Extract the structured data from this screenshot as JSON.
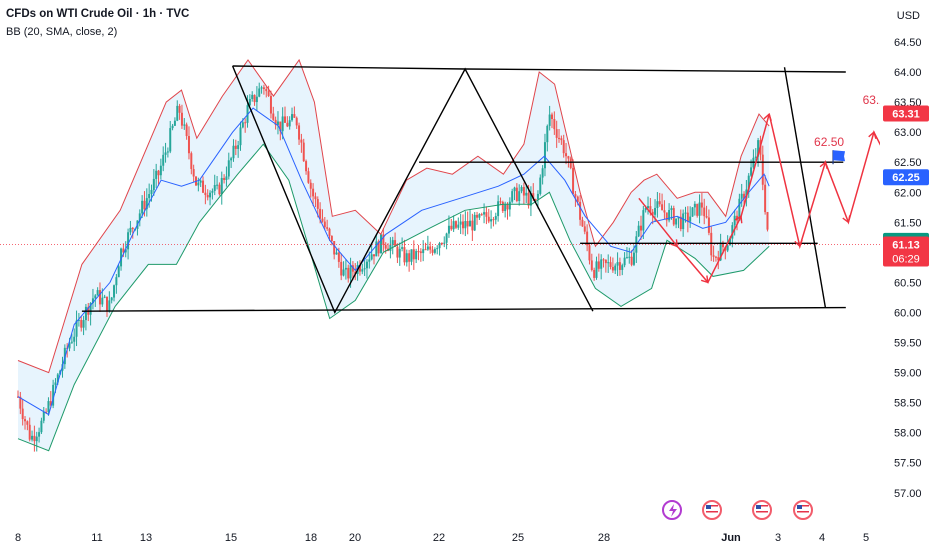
{
  "header": {
    "title": "CFDs on WTI Crude Oil · 1h · TVC",
    "indicator": "BB (20, SMA, close, 2)",
    "currency": "USD"
  },
  "colors": {
    "candle_up": "#26a69a",
    "candle_down": "#ef5350",
    "bb_upper": "#e0454b",
    "bb_lower": "#1e9a6a",
    "bb_basis": "#2962ff",
    "bb_fill": "#e3f2fd",
    "pattern_lines": "#000000",
    "projection": "#ef3340",
    "flag": "#2962ff"
  },
  "chart_data": {
    "type": "candlestick",
    "x_ticks": [
      "8",
      "11",
      "13",
      "15",
      "18",
      "20",
      "22",
      "25",
      "28",
      "Jun",
      "3",
      "4",
      "5"
    ],
    "y_ticks": [
      "64.50",
      "64.00",
      "63.50",
      "63.00",
      "62.50",
      "62.00",
      "61.50",
      "61.00",
      "60.50",
      "60.00",
      "59.50",
      "59.00",
      "58.50",
      "58.00",
      "57.50",
      "57.00"
    ],
    "ylim": [
      56.9,
      64.7
    ],
    "price_labels": [
      {
        "value": 63.31,
        "text": "63.31",
        "color": "#f23645"
      },
      {
        "value": 62.25,
        "text": "62.25",
        "color": "#2962ff"
      },
      {
        "value": 61.19,
        "text": "61.19",
        "color": "#089981"
      },
      {
        "value": 61.13,
        "text": "61.13",
        "color": "#f23645",
        "sub": "06:29"
      }
    ],
    "price_path": [
      [
        0,
        58.6
      ],
      [
        0.5,
        57.9
      ],
      [
        1,
        58.2
      ],
      [
        2,
        59.5
      ],
      [
        3,
        60.3
      ],
      [
        3.6,
        60.1
      ],
      [
        4,
        61.0
      ],
      [
        5.5,
        62.3
      ],
      [
        6.3,
        63.4
      ],
      [
        7,
        62.1
      ],
      [
        7.8,
        62.0
      ],
      [
        8.4,
        62.6
      ],
      [
        9,
        63.4
      ],
      [
        9.6,
        63.8
      ],
      [
        10.2,
        63.1
      ],
      [
        10.9,
        63.2
      ],
      [
        11.5,
        62.0
      ],
      [
        12.2,
        61.2
      ],
      [
        12.8,
        60.6
      ],
      [
        13.4,
        60.8
      ],
      [
        14.3,
        61.2
      ],
      [
        15.2,
        60.9
      ],
      [
        16,
        61.0
      ],
      [
        17,
        61.4
      ],
      [
        18,
        61.5
      ],
      [
        19,
        61.8
      ],
      [
        19.6,
        62.0
      ],
      [
        20.3,
        61.8
      ],
      [
        20.8,
        63.3
      ],
      [
        21.4,
        62.7
      ],
      [
        22,
        61.6
      ],
      [
        22.5,
        60.7
      ],
      [
        23.2,
        60.8
      ],
      [
        24,
        60.9
      ],
      [
        24.6,
        61.8
      ],
      [
        25.2,
        61.7
      ],
      [
        26,
        61.5
      ],
      [
        26.8,
        61.8
      ],
      [
        27.2,
        60.9
      ],
      [
        27.8,
        61.2
      ],
      [
        28.5,
        62.1
      ],
      [
        29,
        62.8
      ],
      [
        29.4,
        61.1
      ]
    ],
    "bb_upper": [
      [
        0,
        59.2
      ],
      [
        1.2,
        59.0
      ],
      [
        2.5,
        60.8
      ],
      [
        4,
        61.7
      ],
      [
        5.8,
        63.5
      ],
      [
        6.4,
        63.7
      ],
      [
        7,
        62.9
      ],
      [
        8,
        63.6
      ],
      [
        9,
        64.2
      ],
      [
        10,
        63.6
      ],
      [
        11,
        64.2
      ],
      [
        11.6,
        63.5
      ],
      [
        12.3,
        61.6
      ],
      [
        13.2,
        61.7
      ],
      [
        14.2,
        61.3
      ],
      [
        15.2,
        62.2
      ],
      [
        16,
        62.4
      ],
      [
        17,
        62.3
      ],
      [
        18,
        62.6
      ],
      [
        19,
        62.3
      ],
      [
        19.8,
        62.8
      ],
      [
        20.4,
        64.0
      ],
      [
        21,
        63.8
      ],
      [
        22,
        62.0
      ],
      [
        22.6,
        61.1
      ],
      [
        23.3,
        61.5
      ],
      [
        24,
        62.0
      ],
      [
        24.5,
        62.2
      ],
      [
        25,
        62.3
      ],
      [
        25.8,
        61.9
      ],
      [
        26.5,
        62.0
      ],
      [
        27,
        62.0
      ],
      [
        27.7,
        61.6
      ],
      [
        28.3,
        62.6
      ],
      [
        29,
        63.3
      ],
      [
        29.4,
        63.1
      ]
    ],
    "bb_basis": [
      [
        0,
        58.6
      ],
      [
        1.2,
        58.3
      ],
      [
        2.2,
        59.8
      ],
      [
        3.6,
        60.5
      ],
      [
        4.6,
        61.4
      ],
      [
        5.6,
        62.2
      ],
      [
        6.4,
        62.1
      ],
      [
        7.1,
        62.2
      ],
      [
        8.4,
        63.0
      ],
      [
        9.2,
        63.4
      ],
      [
        10.2,
        63.1
      ],
      [
        11.1,
        62.2
      ],
      [
        12.2,
        61.2
      ],
      [
        13.2,
        60.7
      ],
      [
        14.4,
        61.3
      ],
      [
        15.8,
        61.7
      ],
      [
        17.3,
        61.9
      ],
      [
        18.8,
        62.1
      ],
      [
        19.8,
        62.3
      ],
      [
        20.6,
        62.6
      ],
      [
        21.4,
        62.2
      ],
      [
        22.2,
        61.6
      ],
      [
        23.2,
        61.1
      ],
      [
        24,
        61.0
      ],
      [
        24.8,
        61.5
      ],
      [
        25.8,
        61.6
      ],
      [
        26.8,
        61.4
      ],
      [
        27.7,
        61.5
      ],
      [
        28.6,
        62.0
      ],
      [
        29.2,
        62.3
      ],
      [
        29.4,
        62.1
      ]
    ],
    "bb_lower": [
      [
        0,
        57.9
      ],
      [
        1.2,
        57.7
      ],
      [
        2.2,
        58.8
      ],
      [
        3.8,
        60.1
      ],
      [
        5.1,
        60.8
      ],
      [
        6.2,
        60.8
      ],
      [
        7.1,
        61.5
      ],
      [
        8.6,
        62.3
      ],
      [
        9.6,
        62.8
      ],
      [
        10.6,
        62.2
      ],
      [
        11.3,
        61.2
      ],
      [
        12.2,
        59.9
      ],
      [
        13.2,
        60.2
      ],
      [
        14.3,
        61.0
      ],
      [
        16.1,
        61.4
      ],
      [
        17.5,
        61.7
      ],
      [
        19,
        61.8
      ],
      [
        20.1,
        61.8
      ],
      [
        20.8,
        62.0
      ],
      [
        21.6,
        61.2
      ],
      [
        22.6,
        60.4
      ],
      [
        23.6,
        60.1
      ],
      [
        24.8,
        60.4
      ],
      [
        25.4,
        61.2
      ],
      [
        26.5,
        60.9
      ],
      [
        27.2,
        60.6
      ],
      [
        28.4,
        60.7
      ],
      [
        29.4,
        61.1
      ]
    ],
    "pattern_lines": [
      [
        [
          8.4,
          64.1
        ],
        [
          12.4,
          60.0
        ],
        [
          17.5,
          64.05
        ],
        [
          22.5,
          60.02
        ]
      ],
      [
        [
          8.4,
          64.1
        ],
        [
          17.5,
          64.05
        ],
        [
          32.4,
          64.0
        ]
      ],
      [
        [
          2.5,
          60.02
        ],
        [
          32.4,
          60.08
        ]
      ],
      [
        [
          15.7,
          62.5
        ],
        [
          32.3,
          62.5
        ]
      ],
      [
        [
          22,
          61.15
        ],
        [
          31.3,
          61.15
        ]
      ],
      [
        [
          30.0,
          64.08
        ],
        [
          31.6,
          60.08
        ]
      ]
    ],
    "projection_path": [
      [
        24.3,
        61.9
      ],
      [
        25.8,
        61.1
      ],
      [
        27,
        60.5
      ],
      [
        28.3,
        61.6
      ],
      [
        29.4,
        63.3
      ],
      [
        30.6,
        61.1
      ],
      [
        31.6,
        62.5
      ],
      [
        32.5,
        61.5
      ],
      [
        33.5,
        63.0
      ],
      [
        34.1,
        62.5
      ],
      [
        35.5,
        64.0
      ]
    ],
    "projection_targets": [
      {
        "value": 62.5,
        "label": "62.50",
        "x": 31.9
      },
      {
        "value": 63.2,
        "label": "63.20",
        "x": 33.8
      },
      {
        "value": 64.0,
        "label": "64.00",
        "x": 35.6
      }
    ]
  },
  "event_icons": [
    {
      "name": "dividend-lightning-icon"
    },
    {
      "name": "us-flag-event-icon"
    },
    {
      "name": "us-flag-event-icon"
    },
    {
      "name": "us-flag-event-icon"
    }
  ]
}
